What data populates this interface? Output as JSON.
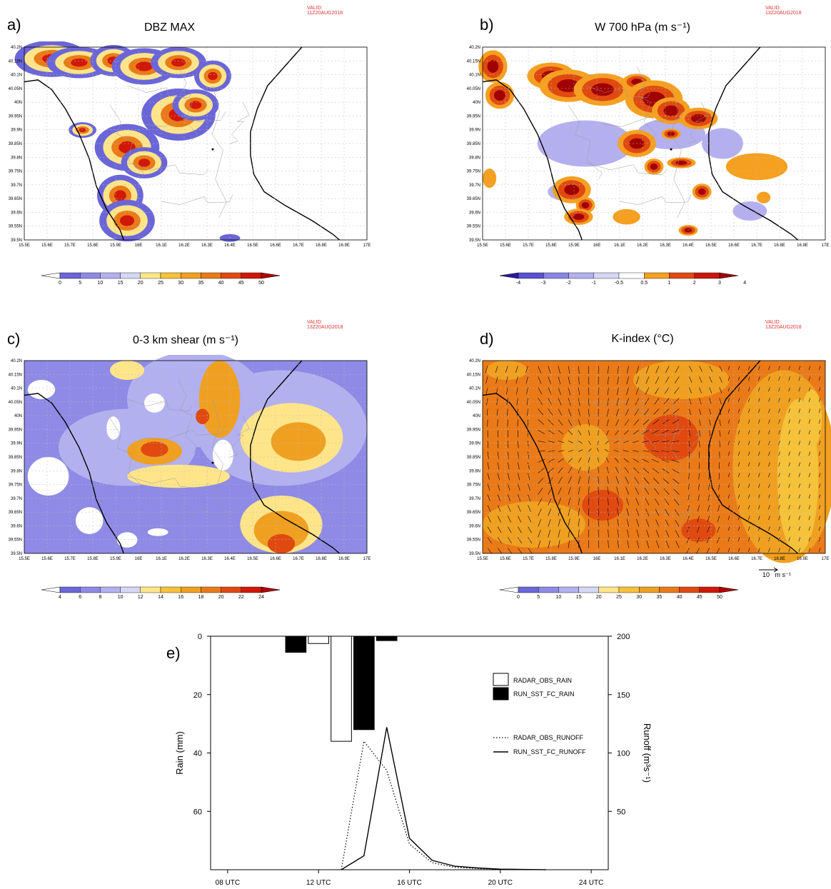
{
  "valid_stamps": [
    "VALID: 11Z20AUG2018",
    "VALID: 13Z20AUG2018",
    "VALID: 13Z20AUG2018",
    "VALID: 13Z20AUG2018"
  ],
  "panels": [
    {
      "label": "a)",
      "title": "DBZ MAX",
      "cbar_ticks": [
        "0",
        "5",
        "10",
        "15",
        "20",
        "25",
        "30",
        "35",
        "40",
        "45",
        "50"
      ],
      "cbar_colors": [
        "#ffffff",
        "#6b66d8",
        "#8e8ae6",
        "#b3b0ef",
        "#d6d6f5",
        "#ffe58a",
        "#f5c23a",
        "#f0a020",
        "#ea7a18",
        "#e04a10",
        "#d01808",
        "#b00000"
      ]
    },
    {
      "label": "b)",
      "title": "W 700 hPa (m s⁻¹)",
      "cbar_ticks": [
        "-4",
        "-3",
        "-2",
        "-1",
        "-0.5",
        "0.5",
        "1",
        "2",
        "3",
        "4"
      ],
      "cbar_colors": [
        "#2a1aa0",
        "#5a50d0",
        "#8a84e4",
        "#b4b0ef",
        "#d8d6f6",
        "#ffffff",
        "#f5a020",
        "#e04a10",
        "#c81808",
        "#a00000"
      ]
    },
    {
      "label": "c)",
      "title": "0-3 km shear (m s⁻¹)",
      "cbar_ticks": [
        "4",
        "6",
        "8",
        "10",
        "12",
        "14",
        "16",
        "18",
        "20",
        "22",
        "24"
      ],
      "cbar_colors": [
        "#ffffff",
        "#6b66d8",
        "#8e8ae6",
        "#b3b0ef",
        "#d6d6f5",
        "#ffe58a",
        "#f5c23a",
        "#f0a020",
        "#ea7a18",
        "#e04a10",
        "#d01808",
        "#b00000"
      ]
    },
    {
      "label": "d)",
      "title": "K-index (°C)",
      "cbar_ticks": [
        "0",
        "5",
        "10",
        "15",
        "20",
        "25",
        "30",
        "35",
        "40",
        "45",
        "50"
      ],
      "cbar_colors": [
        "#ffffff",
        "#6b66d8",
        "#8e8ae6",
        "#b3b0ef",
        "#d6d6f5",
        "#ffe58a",
        "#f5c23a",
        "#f0a020",
        "#ea7a18",
        "#e04a10",
        "#d01808",
        "#b00000"
      ],
      "vector_ref": "10   m s⁻¹"
    }
  ],
  "map_axes": {
    "lat_ticks": [
      "40.2N",
      "40.15N",
      "40.1N",
      "40.05N",
      "40N",
      "39.95N",
      "39.9N",
      "39.85N",
      "39.8N",
      "39.75N",
      "39.7N",
      "39.65N",
      "39.6N",
      "39.55N",
      "39.5N"
    ],
    "lon_ticks": [
      "15.5E",
      "15.6E",
      "15.7E",
      "15.8E",
      "15.9E",
      "16E",
      "16.1E",
      "16.2E",
      "16.3E",
      "16.4E",
      "16.5E",
      "16.6E",
      "16.7E",
      "16.8E",
      "16.9E",
      "17E"
    ]
  },
  "chart_data": {
    "type": "bar",
    "label": "e)",
    "x_tick_labels": [
      "08 UTC",
      "12 UTC",
      "16 UTC",
      "20 UTC",
      "24 UTC"
    ],
    "x_tick_hours": [
      8,
      12,
      16,
      20,
      24
    ],
    "xlim": [
      7.25,
      24.75
    ],
    "ylabel_left": "Rain (mm)",
    "ylim_left": [
      80,
      0
    ],
    "yticks_left": [
      0,
      20,
      40,
      60
    ],
    "ylabel_right": "Runoff (m³s⁻¹)",
    "ylim_right": [
      0,
      200
    ],
    "yticks_right": [
      50,
      100,
      150,
      200
    ],
    "legend": [
      "RADAR_OBS_RAIN",
      "RUN_SST_FC_RAIN",
      "RADAR_OBS_RUNOFF",
      "RUN_SST_FC_RUNOFF"
    ],
    "bars": [
      {
        "series": "RUN_SST_FC_RAIN",
        "hour": 11,
        "value": 5.5
      },
      {
        "series": "RADAR_OBS_RAIN",
        "hour": 12,
        "value": 2.5
      },
      {
        "series": "RADAR_OBS_RAIN",
        "hour": 13,
        "value": 36
      },
      {
        "series": "RUN_SST_FC_RAIN",
        "hour": 14,
        "value": 32
      },
      {
        "series": "RUN_SST_FC_RAIN",
        "hour": 15,
        "value": 1.5
      }
    ],
    "lines": [
      {
        "name": "RADAR_OBS_RUNOFF",
        "style": "dotted",
        "x": [
          13,
          14,
          15,
          16,
          17,
          18,
          19,
          20,
          22
        ],
        "y": [
          0,
          110,
          85,
          22,
          6,
          2,
          1,
          0.5,
          0
        ]
      },
      {
        "name": "RUN_SST_FC_RUNOFF",
        "style": "solid",
        "x": [
          13,
          14,
          15,
          16,
          17,
          18,
          19,
          20,
          22
        ],
        "y": [
          0,
          12,
          122,
          27,
          8,
          3,
          1.5,
          0.5,
          0
        ]
      }
    ]
  }
}
